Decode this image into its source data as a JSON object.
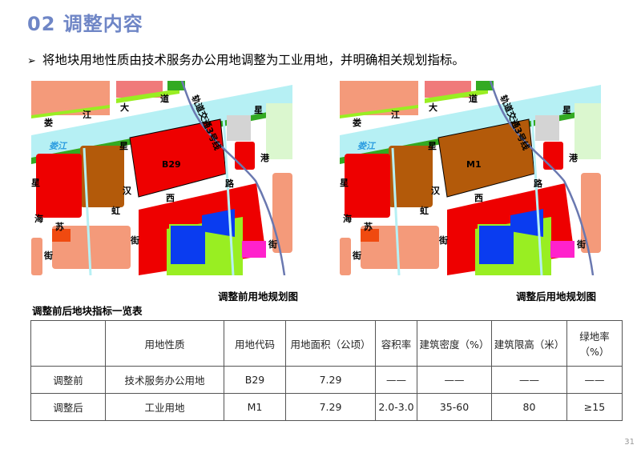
{
  "title": "02 调整内容",
  "bullet": {
    "marker": "➢",
    "text": "将地块用地性质由技术服务办公用地调整为工业用地，并明确相关规划指标。"
  },
  "maps": [
    {
      "caption": "调整前用地规划图",
      "block_label": "B29",
      "block_color": "#ee0000"
    },
    {
      "caption": "调整后用地规划图",
      "block_label": "M1",
      "block_color": "#b35a0a"
    }
  ],
  "map_labels": {
    "road_top": [
      "娄",
      "江",
      "大",
      "道"
    ],
    "river": "娄江",
    "metro": "轨道交通3号线",
    "xing_top": "星",
    "gang": "港",
    "xing_mid": "星",
    "han": "汉",
    "xi": "西",
    "lu": "路",
    "left_road": [
      "星",
      "海",
      "街"
    ],
    "suhong": [
      "苏",
      "虹",
      "街"
    ],
    "jie_right": "街"
  },
  "colors": {
    "title": "#6f86c6",
    "river": "#b6f0f4",
    "green": "#33aa22",
    "lime": "#99ee22",
    "salmon": "#f49a7a",
    "metro": "#6a78b0",
    "blue": "#0a3cf0",
    "magenta": "#ff22cc",
    "gray": "#d4d4d4"
  },
  "table": {
    "caption": "调整前后地块指标一览表",
    "headers": [
      "",
      "用地性质",
      "用地代码",
      "用地面积（公顷）",
      "容积率",
      "建筑密度（%）",
      "建筑限高（米）",
      "绿地率（%）"
    ],
    "rows": [
      [
        "调整前",
        "技术服务办公用地",
        "B29",
        "7.29",
        "——",
        "——",
        "——",
        "——"
      ],
      [
        "调整后",
        "工业用地",
        "M1",
        "7.29",
        "2.0-3.0",
        "35-60",
        "80",
        "≥15"
      ]
    ]
  },
  "page_number": "31"
}
